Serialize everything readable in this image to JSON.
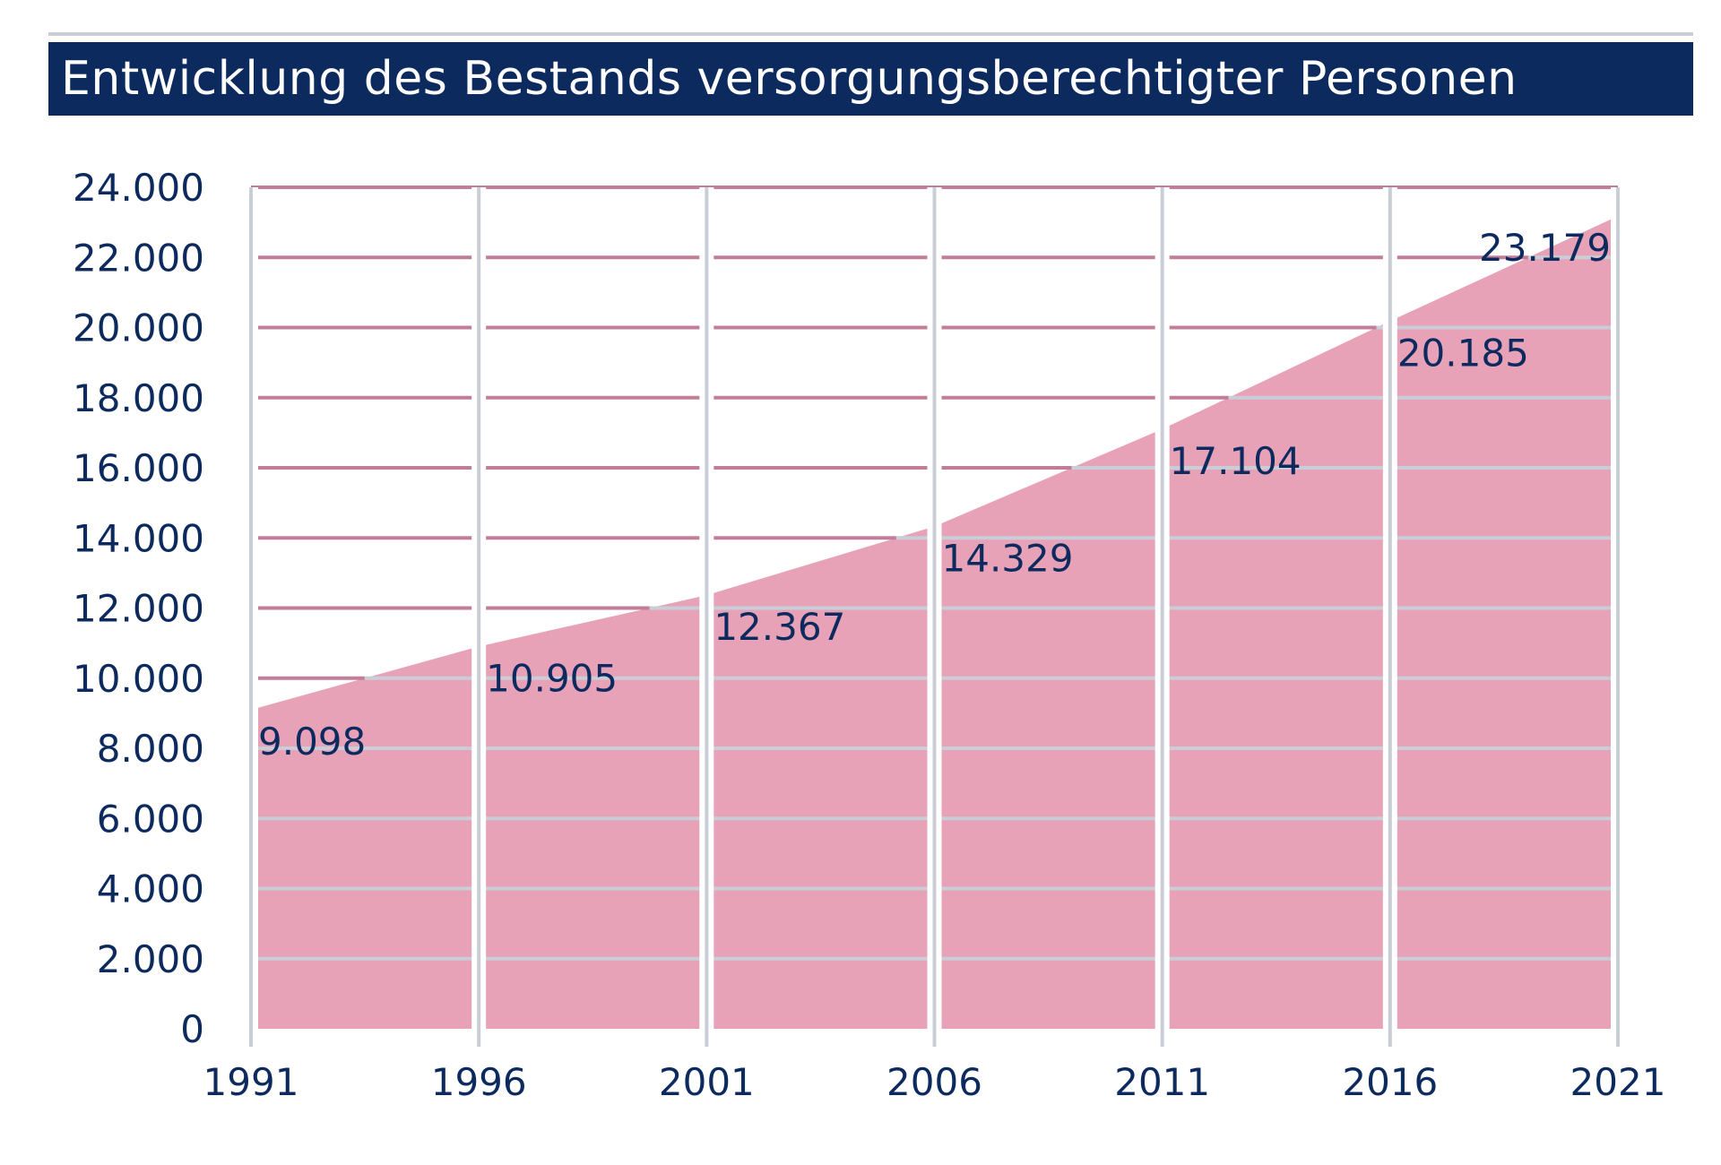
{
  "colors": {
    "title_bg": "#0d2a5e",
    "text": "#0d2a5e",
    "area": "#e8a2b8",
    "grid": "#c9cdd6",
    "grid_on_area": "#c27e98"
  },
  "chart_data": {
    "type": "area",
    "title": "Entwicklung des Bestands versorgungsberechtigter Personen",
    "x": [
      1991,
      1996,
      2001,
      2006,
      2011,
      2016,
      2021
    ],
    "x_tick_labels": [
      "1991",
      "1996",
      "2001",
      "2006",
      "2011",
      "2016",
      "2021"
    ],
    "values": [
      9098,
      10905,
      12367,
      14329,
      17104,
      20185,
      23179
    ],
    "value_labels": [
      "9.098",
      "10.905",
      "12.367",
      "14.329",
      "17.104",
      "20.185",
      "23.179"
    ],
    "y_ticks": [
      0,
      2000,
      4000,
      6000,
      8000,
      10000,
      12000,
      14000,
      16000,
      18000,
      20000,
      22000,
      24000
    ],
    "y_tick_labels": [
      "0",
      "2.000",
      "4.000",
      "6.000",
      "8.000",
      "10.000",
      "12.000",
      "14.000",
      "16.000",
      "18.000",
      "20.000",
      "22.000",
      "24.000"
    ],
    "ylim": [
      0,
      24000
    ],
    "xlim": [
      1991,
      2021
    ],
    "grid": true,
    "legend": "none"
  }
}
